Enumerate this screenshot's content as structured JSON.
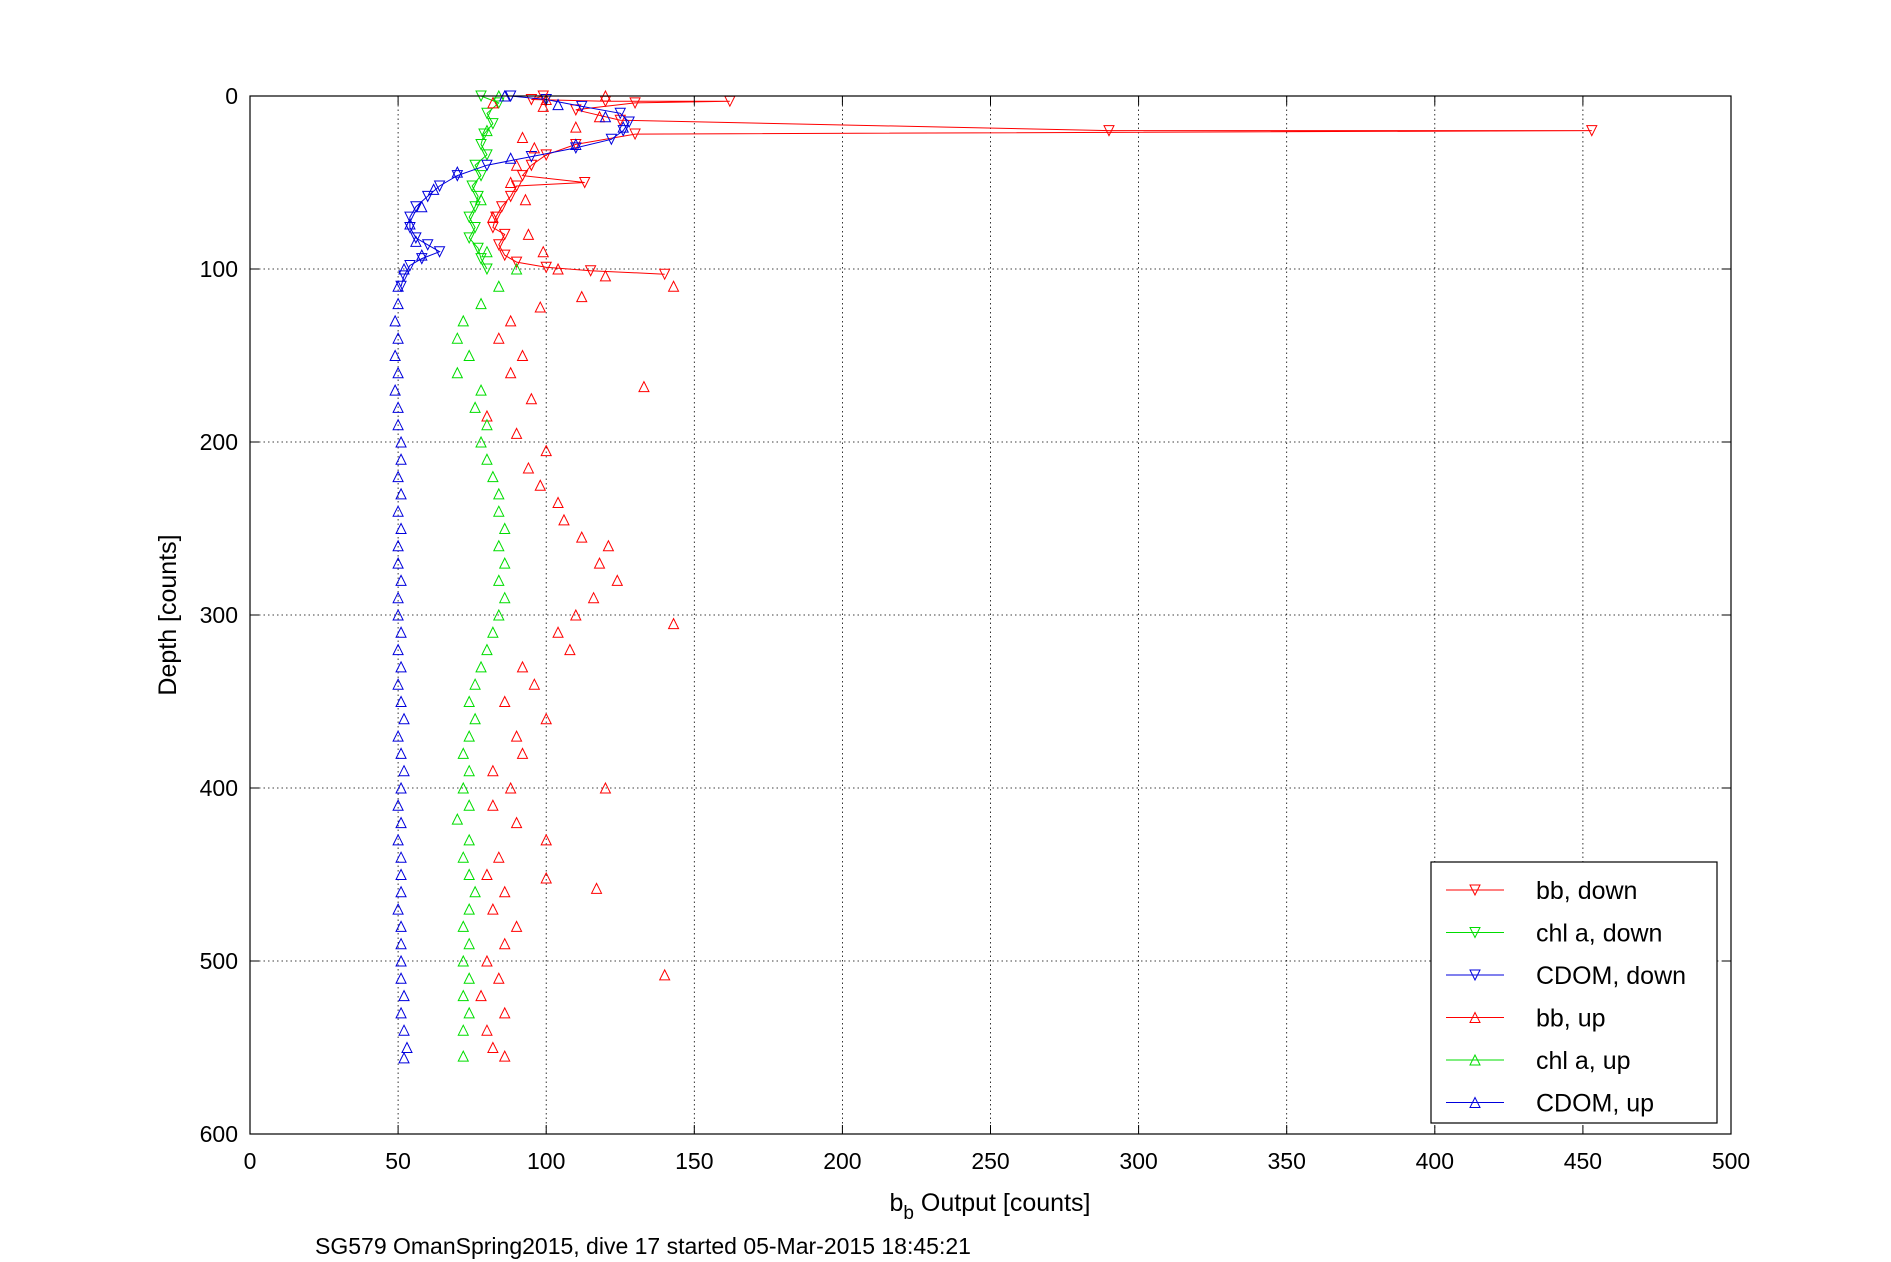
{
  "chart_data": {
    "type": "scatter",
    "xlabel_main": "b",
    "xlabel_sub": "b",
    "xlabel_rest": " Output [counts]",
    "ylabel": "Depth [counts]",
    "xlim": [
      0,
      500
    ],
    "ylim": [
      600,
      0
    ],
    "xticks": [
      "0",
      "50",
      "100",
      "150",
      "200",
      "250",
      "300",
      "350",
      "400",
      "450",
      "500"
    ],
    "yticks": [
      "0",
      "100",
      "200",
      "300",
      "400",
      "500",
      "600"
    ],
    "grid": true,
    "legend_position": "bottom-right",
    "caption": "SG579 OmanSpring2015, dive 17 started 05-Mar-2015 18:45:21",
    "series": [
      {
        "name": "bb, down",
        "color": "#ff0000",
        "marker": "triangle-down",
        "line": true,
        "points": [
          [
            99,
            0
          ],
          [
            95,
            2
          ],
          [
            120,
            3
          ],
          [
            162,
            3
          ],
          [
            130,
            4
          ],
          [
            110,
            8
          ],
          [
            125,
            14
          ],
          [
            290,
            20
          ],
          [
            453,
            20
          ],
          [
            130,
            22
          ],
          [
            110,
            28
          ],
          [
            100,
            34
          ],
          [
            95,
            40
          ],
          [
            92,
            46
          ],
          [
            113,
            50
          ],
          [
            90,
            52
          ],
          [
            88,
            58
          ],
          [
            85,
            64
          ],
          [
            83,
            70
          ],
          [
            82,
            76
          ],
          [
            86,
            80
          ],
          [
            84,
            86
          ],
          [
            86,
            92
          ],
          [
            90,
            96
          ],
          [
            100,
            99
          ],
          [
            115,
            101
          ],
          [
            140,
            103
          ]
        ]
      },
      {
        "name": "chl a, down",
        "color": "#00dd00",
        "marker": "triangle-down",
        "line": true,
        "points": [
          [
            78,
            0
          ],
          [
            84,
            4
          ],
          [
            80,
            10
          ],
          [
            82,
            16
          ],
          [
            79,
            22
          ],
          [
            78,
            28
          ],
          [
            80,
            34
          ],
          [
            76,
            40
          ],
          [
            78,
            46
          ],
          [
            75,
            52
          ],
          [
            77,
            58
          ],
          [
            76,
            64
          ],
          [
            74,
            70
          ],
          [
            76,
            76
          ],
          [
            74,
            82
          ],
          [
            77,
            88
          ],
          [
            78,
            94
          ],
          [
            80,
            100
          ]
        ]
      },
      {
        "name": "CDOM, down",
        "color": "#0000dd",
        "marker": "triangle-down",
        "line": true,
        "points": [
          [
            88,
            0
          ],
          [
            100,
            2
          ],
          [
            112,
            6
          ],
          [
            125,
            10
          ],
          [
            128,
            15
          ],
          [
            126,
            20
          ],
          [
            122,
            25
          ],
          [
            110,
            30
          ],
          [
            95,
            35
          ],
          [
            80,
            40
          ],
          [
            70,
            46
          ],
          [
            64,
            52
          ],
          [
            60,
            58
          ],
          [
            56,
            64
          ],
          [
            54,
            70
          ],
          [
            54,
            76
          ],
          [
            56,
            82
          ],
          [
            60,
            86
          ],
          [
            64,
            90
          ],
          [
            58,
            94
          ],
          [
            54,
            98
          ],
          [
            52,
            104
          ],
          [
            51,
            110
          ]
        ]
      },
      {
        "name": "bb, up",
        "color": "#ff0000",
        "marker": "triangle-up",
        "line": false,
        "points": [
          [
            120,
            0
          ],
          [
            100,
            2
          ],
          [
            82,
            4
          ],
          [
            99,
            6
          ],
          [
            118,
            12
          ],
          [
            110,
            18
          ],
          [
            92,
            24
          ],
          [
            96,
            30
          ],
          [
            90,
            40
          ],
          [
            88,
            50
          ],
          [
            93,
            60
          ],
          [
            82,
            70
          ],
          [
            94,
            80
          ],
          [
            99,
            90
          ],
          [
            104,
            100
          ],
          [
            120,
            104
          ],
          [
            143,
            110
          ],
          [
            112,
            116
          ],
          [
            98,
            122
          ],
          [
            88,
            130
          ],
          [
            84,
            140
          ],
          [
            92,
            150
          ],
          [
            88,
            160
          ],
          [
            133,
            168
          ],
          [
            95,
            175
          ],
          [
            80,
            185
          ],
          [
            90,
            195
          ],
          [
            100,
            205
          ],
          [
            94,
            215
          ],
          [
            98,
            225
          ],
          [
            104,
            235
          ],
          [
            106,
            245
          ],
          [
            112,
            255
          ],
          [
            121,
            260
          ],
          [
            118,
            270
          ],
          [
            124,
            280
          ],
          [
            116,
            290
          ],
          [
            110,
            300
          ],
          [
            104,
            310
          ],
          [
            108,
            320
          ],
          [
            92,
            330
          ],
          [
            96,
            340
          ],
          [
            86,
            350
          ],
          [
            100,
            360
          ],
          [
            90,
            370
          ],
          [
            92,
            380
          ],
          [
            82,
            390
          ],
          [
            88,
            400
          ],
          [
            82,
            410
          ],
          [
            90,
            420
          ],
          [
            100,
            430
          ],
          [
            84,
            440
          ],
          [
            80,
            450
          ],
          [
            86,
            460
          ],
          [
            82,
            470
          ],
          [
            90,
            480
          ],
          [
            86,
            490
          ],
          [
            80,
            500
          ],
          [
            84,
            510
          ],
          [
            78,
            520
          ],
          [
            86,
            530
          ],
          [
            80,
            540
          ],
          [
            82,
            550
          ],
          [
            117,
            458
          ],
          [
            100,
            452
          ],
          [
            120,
            400
          ],
          [
            143,
            305
          ],
          [
            140,
            508
          ],
          [
            86,
            555
          ]
        ]
      },
      {
        "name": "chl a, up",
        "color": "#00dd00",
        "marker": "triangle-up",
        "line": false,
        "points": [
          [
            84,
            0
          ],
          [
            80,
            20
          ],
          [
            78,
            60
          ],
          [
            80,
            90
          ],
          [
            90,
            100
          ],
          [
            84,
            110
          ],
          [
            78,
            120
          ],
          [
            72,
            130
          ],
          [
            70,
            140
          ],
          [
            74,
            150
          ],
          [
            70,
            160
          ],
          [
            78,
            170
          ],
          [
            76,
            180
          ],
          [
            80,
            190
          ],
          [
            78,
            200
          ],
          [
            80,
            210
          ],
          [
            82,
            220
          ],
          [
            84,
            230
          ],
          [
            84,
            240
          ],
          [
            86,
            250
          ],
          [
            84,
            260
          ],
          [
            86,
            270
          ],
          [
            84,
            280
          ],
          [
            86,
            290
          ],
          [
            84,
            300
          ],
          [
            82,
            310
          ],
          [
            80,
            320
          ],
          [
            78,
            330
          ],
          [
            76,
            340
          ],
          [
            74,
            350
          ],
          [
            76,
            360
          ],
          [
            74,
            370
          ],
          [
            72,
            380
          ],
          [
            74,
            390
          ],
          [
            72,
            400
          ],
          [
            74,
            410
          ],
          [
            70,
            418
          ],
          [
            74,
            430
          ],
          [
            72,
            440
          ],
          [
            74,
            450
          ],
          [
            76,
            460
          ],
          [
            74,
            470
          ],
          [
            72,
            480
          ],
          [
            74,
            490
          ],
          [
            72,
            500
          ],
          [
            74,
            510
          ],
          [
            72,
            520
          ],
          [
            74,
            530
          ],
          [
            72,
            540
          ],
          [
            72,
            555
          ]
        ]
      },
      {
        "name": "CDOM, up",
        "color": "#0000dd",
        "marker": "triangle-up",
        "line": false,
        "points": [
          [
            86,
            0
          ],
          [
            104,
            5
          ],
          [
            120,
            12
          ],
          [
            126,
            18
          ],
          [
            110,
            28
          ],
          [
            88,
            36
          ],
          [
            70,
            44
          ],
          [
            62,
            54
          ],
          [
            58,
            64
          ],
          [
            54,
            74
          ],
          [
            56,
            84
          ],
          [
            58,
            92
          ],
          [
            52,
            100
          ],
          [
            50,
            110
          ],
          [
            50,
            120
          ],
          [
            49,
            130
          ],
          [
            50,
            140
          ],
          [
            49,
            150
          ],
          [
            50,
            160
          ],
          [
            49,
            170
          ],
          [
            50,
            180
          ],
          [
            50,
            190
          ],
          [
            51,
            200
          ],
          [
            51,
            210
          ],
          [
            50,
            220
          ],
          [
            51,
            230
          ],
          [
            50,
            240
          ],
          [
            51,
            250
          ],
          [
            50,
            260
          ],
          [
            50,
            270
          ],
          [
            51,
            280
          ],
          [
            50,
            290
          ],
          [
            50,
            300
          ],
          [
            51,
            310
          ],
          [
            50,
            320
          ],
          [
            51,
            330
          ],
          [
            50,
            340
          ],
          [
            51,
            350
          ],
          [
            52,
            360
          ],
          [
            50,
            370
          ],
          [
            51,
            380
          ],
          [
            52,
            390
          ],
          [
            51,
            400
          ],
          [
            50,
            410
          ],
          [
            51,
            420
          ],
          [
            50,
            430
          ],
          [
            51,
            440
          ],
          [
            51,
            450
          ],
          [
            51,
            460
          ],
          [
            50,
            470
          ],
          [
            51,
            480
          ],
          [
            51,
            490
          ],
          [
            51,
            500
          ],
          [
            51,
            510
          ],
          [
            52,
            520
          ],
          [
            51,
            530
          ],
          [
            52,
            540
          ],
          [
            53,
            550
          ],
          [
            52,
            556
          ]
        ]
      }
    ]
  }
}
